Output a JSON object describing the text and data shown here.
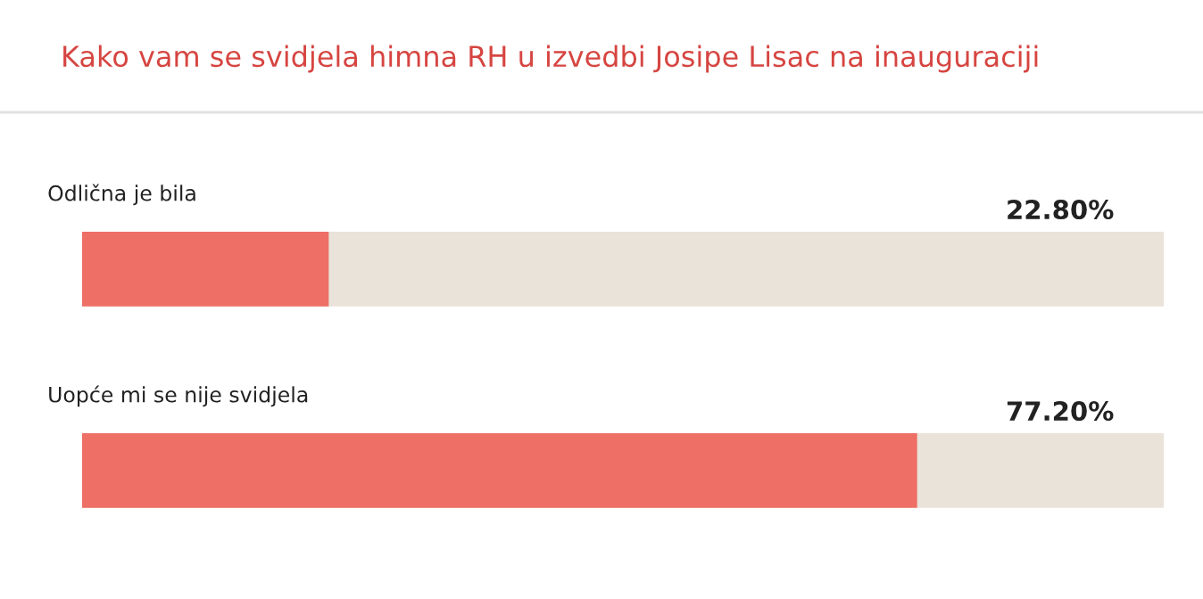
{
  "chart_data": {
    "type": "bar",
    "orientation": "horizontal",
    "title": "Kako vam se svidjela himna RH u izvedbi Josipe Lisac na inauguraciji",
    "categories": [
      "Odlična je bila",
      "Uopće mi se nije svidjela"
    ],
    "series": [
      {
        "color": "#ed6f65",
        "values": [
          22.8,
          77.2
        ],
        "value_labels": [
          "22.80%",
          "77.20%"
        ]
      }
    ],
    "xlim": [
      0,
      100
    ],
    "tick_labels": "y"
  }
}
